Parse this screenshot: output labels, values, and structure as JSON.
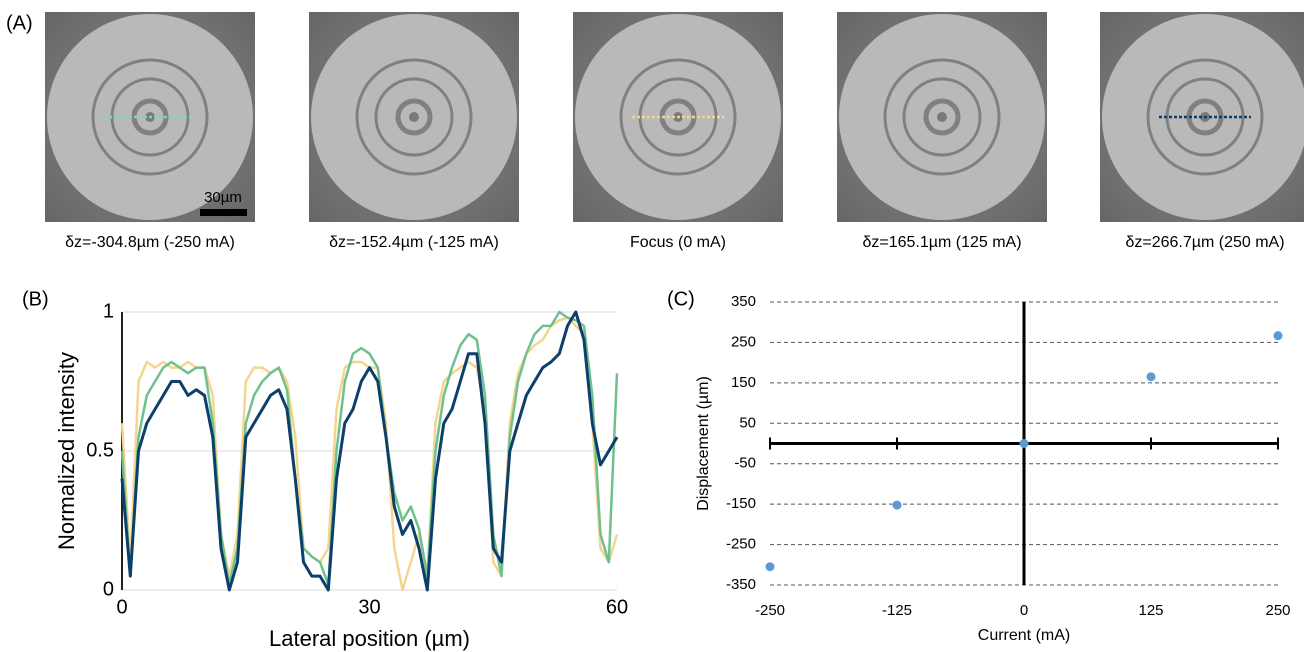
{
  "panel_a": {
    "label": "(A)",
    "scale_bar": "30µm",
    "captions": [
      "δz=-304.8µm (-250 mA)",
      "δz=-152.4µm (-125 mA)",
      "Focus (0 mA)",
      "δz=165.1µm (125 mA)",
      "δz=266.7µm (250 mA)"
    ]
  },
  "chart_data": [
    {
      "type": "line",
      "label": "(B)",
      "x_label": "Lateral position (µm)",
      "y_label": "Normalized intensity",
      "x": [
        0,
        1,
        2,
        3,
        4,
        5,
        6,
        7,
        8,
        9,
        10,
        11,
        12,
        13,
        14,
        15,
        16,
        17,
        18,
        19,
        20,
        21,
        22,
        23,
        24,
        25,
        26,
        27,
        28,
        29,
        30,
        31,
        32,
        33,
        34,
        35,
        36,
        37,
        38,
        39,
        40,
        41,
        42,
        43,
        44,
        45,
        46,
        47,
        48,
        49,
        50,
        51,
        52,
        53,
        54,
        55,
        56,
        57,
        58,
        59,
        60
      ],
      "xlim": [
        0,
        60
      ],
      "xticks": [
        0,
        30,
        60
      ],
      "ylim": [
        0,
        1
      ],
      "yticks": [
        0,
        0.5,
        1
      ],
      "grid": true,
      "series": [
        {
          "color": "#f5d58e",
          "values": [
            0.6,
            0.1,
            0.75,
            0.82,
            0.8,
            0.82,
            0.8,
            0.8,
            0.82,
            0.8,
            0.8,
            0.7,
            0.2,
            0.05,
            0.2,
            0.75,
            0.8,
            0.8,
            0.78,
            0.8,
            0.75,
            0.55,
            0.15,
            0.12,
            0.1,
            0.15,
            0.65,
            0.8,
            0.82,
            0.82,
            0.8,
            0.8,
            0.6,
            0.15,
            0.0,
            0.1,
            0.2,
            0.05,
            0.6,
            0.75,
            0.78,
            0.8,
            0.82,
            0.8,
            0.65,
            0.1,
            0.05,
            0.6,
            0.78,
            0.85,
            0.88,
            0.9,
            0.95,
            0.97,
            0.98,
            0.95,
            0.92,
            0.6,
            0.15,
            0.1,
            0.2
          ]
        },
        {
          "color": "#6fc08f",
          "values": [
            0.5,
            0.05,
            0.55,
            0.7,
            0.75,
            0.8,
            0.82,
            0.8,
            0.78,
            0.8,
            0.8,
            0.6,
            0.2,
            0.02,
            0.15,
            0.6,
            0.7,
            0.75,
            0.78,
            0.8,
            0.72,
            0.4,
            0.15,
            0.12,
            0.1,
            0.02,
            0.5,
            0.75,
            0.85,
            0.87,
            0.85,
            0.8,
            0.55,
            0.35,
            0.25,
            0.3,
            0.22,
            0.05,
            0.5,
            0.7,
            0.8,
            0.88,
            0.92,
            0.9,
            0.7,
            0.2,
            0.05,
            0.55,
            0.75,
            0.85,
            0.92,
            0.95,
            0.95,
            1.0,
            0.98,
            0.97,
            0.95,
            0.7,
            0.2,
            0.1,
            0.78
          ]
        },
        {
          "color": "#0d3f6b",
          "values": [
            0.4,
            0.05,
            0.5,
            0.6,
            0.65,
            0.7,
            0.75,
            0.75,
            0.7,
            0.72,
            0.7,
            0.55,
            0.15,
            0.0,
            0.1,
            0.55,
            0.6,
            0.65,
            0.7,
            0.72,
            0.65,
            0.4,
            0.1,
            0.05,
            0.05,
            0.0,
            0.4,
            0.6,
            0.65,
            0.75,
            0.8,
            0.75,
            0.55,
            0.3,
            0.2,
            0.25,
            0.15,
            0.0,
            0.4,
            0.6,
            0.65,
            0.75,
            0.85,
            0.85,
            0.6,
            0.15,
            0.1,
            0.5,
            0.6,
            0.7,
            0.75,
            0.8,
            0.82,
            0.85,
            0.95,
            1.0,
            0.9,
            0.6,
            0.45,
            0.5,
            0.55
          ]
        }
      ]
    },
    {
      "type": "scatter",
      "label": "(C)",
      "x_label": "Current (mA)",
      "y_label": "Displacement (µm)",
      "x": [
        -250,
        -125,
        0,
        125,
        250
      ],
      "values": [
        -304.8,
        -152.4,
        0,
        165.1,
        266.7
      ],
      "color": "#5b9bd5",
      "xlim": [
        -250,
        250
      ],
      "xticks": [
        -250,
        -125,
        0,
        125,
        250
      ],
      "ylim": [
        -350,
        350
      ],
      "yticks": [
        -350,
        -250,
        -150,
        -50,
        50,
        150,
        250,
        350
      ],
      "grid": true
    }
  ]
}
